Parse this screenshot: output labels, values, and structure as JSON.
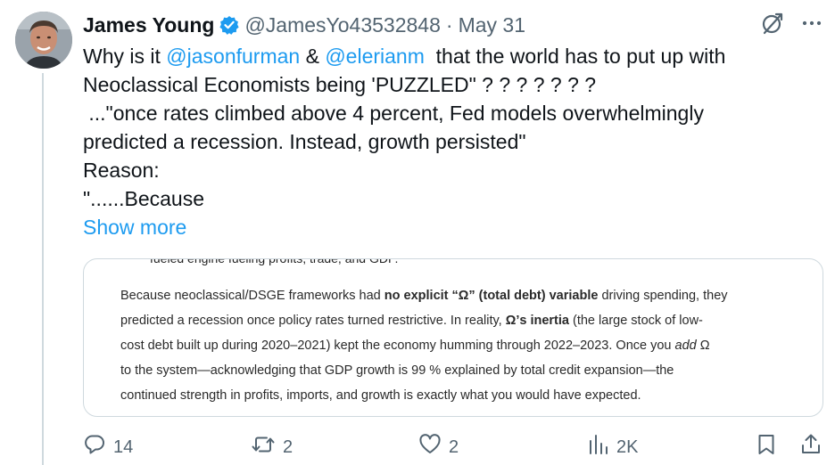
{
  "post": {
    "author_name": "James Young",
    "handle": "@JamesYo43532848",
    "separator": "·",
    "date": "May 31",
    "text": {
      "prefix": "Why is it ",
      "mention1": "@jasonfurman",
      "amp": " & ",
      "mention2": "@elerianm",
      "line1_rest": "  that the world has to put up with",
      "line2": "Neoclassical Economists being 'PUZZLED\" ? ? ? ? ? ? ?",
      "line3": " ...\"once rates climbed above 4 percent, Fed models overwhelmingly",
      "line4": "predicted a recession. Instead, growth persisted\"",
      "line5": "Reason:",
      "line6": "\"......Because",
      "show_more": "Show more"
    },
    "card": {
      "cut_line": "fueled engine fueling profits, trade, and GDP.",
      "l1_a": "Because neoclassical/DSGE frameworks had ",
      "l1_b": "no explicit “Ω” (total debt) variable",
      "l1_c": " driving spending, they",
      "l2_a": "predicted a recession once policy rates turned restrictive. In reality, ",
      "l2_b": "Ω’s inertia",
      "l2_c": " (the large stock of low-",
      "l3_a": "cost debt built up during 2020–2021) kept the economy humming through 2022–2023. Once you ",
      "l3_b": "add",
      "l3_c": " Ω",
      "l4": "to the system—acknowledging that GDP growth is 99 % explained by total credit expansion—the",
      "l5": "continued strength in profits, imports, and growth is exactly what you would have expected."
    },
    "actions": {
      "replies": "14",
      "reposts": "2",
      "likes": "2",
      "views": "2K"
    }
  },
  "colors": {
    "accent": "#1d9bf0",
    "muted": "#536471",
    "border": "#cfd9de"
  },
  "icons": [
    "verified-badge-icon",
    "grok-icon",
    "more-icon",
    "reply-icon",
    "repost-icon",
    "like-icon",
    "views-icon",
    "bookmark-icon",
    "share-icon"
  ]
}
